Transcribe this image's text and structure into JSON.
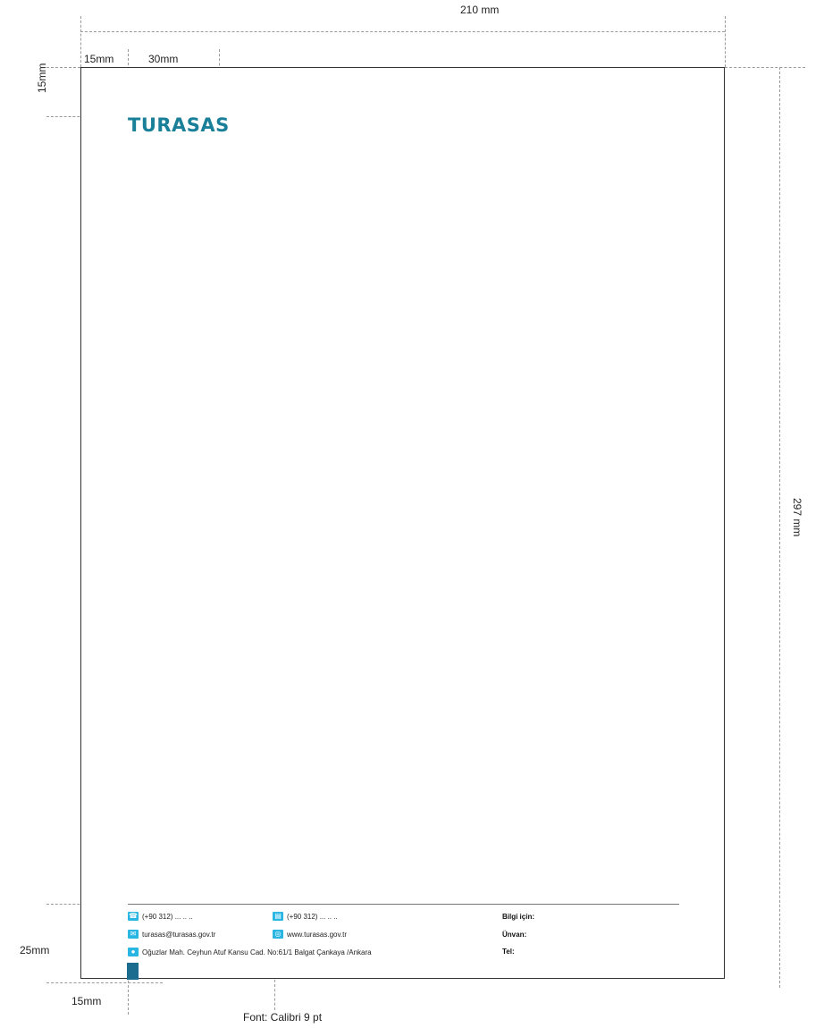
{
  "dimensions": {
    "width": "210 mm",
    "height": "297 mm",
    "left_margin": "15mm",
    "content_offset": "30mm",
    "top_margin": "15mm",
    "footer_height": "25mm",
    "bottom_left": "15mm"
  },
  "logo": {
    "text": "TURASAS",
    "color": "#1a7f98"
  },
  "footer": {
    "phone": "(+90 312) ... .. ..",
    "fax": "(+90 312) ... .. ..",
    "email": "turasas@turasas.gov.tr",
    "website": "www.turasas.gov.tr",
    "address": "Oğuzlar Mah. Ceyhun Atuf Kansu Cad. No:61/1 Balgat Çankaya /Ankara",
    "info_label": "Bilgi için:",
    "title_label": "Ünvan:",
    "tel_label": "Tel:",
    "icons": [
      "phone-icon",
      "fax-icon",
      "email-icon",
      "globe-icon",
      "location-pin-icon"
    ],
    "icon_color": "#29b6e3"
  },
  "font_note": "Font: Calibri 9 pt"
}
